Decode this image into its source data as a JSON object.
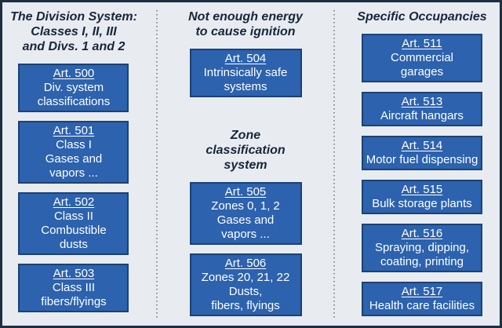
{
  "palette": {
    "panel_bg": "#e8ecf0",
    "frame_border": "#1c3044",
    "box_fill": "#2c62ae",
    "box_border": "#1b4275",
    "box_text": "#ffffff",
    "header_text": "#17263b",
    "divider_dot": "#8b929c"
  },
  "columns": [
    {
      "name": "division-system",
      "sections": [
        {
          "header_lines": [
            "The Division System:",
            "Classes I, II, III",
            "and Divs. 1 and 2"
          ],
          "boxes": [
            {
              "article": "Art. 500",
              "lines": [
                "Div. system",
                "classifications"
              ]
            },
            {
              "article": "Art. 501",
              "lines": [
                "Class I",
                "Gases and",
                "vapors ..."
              ]
            },
            {
              "article": "Art. 502",
              "lines": [
                "Class II",
                "Combustible",
                "dusts"
              ]
            },
            {
              "article": "Art. 503",
              "lines": [
                "Class III",
                "fibers/flyings"
              ]
            }
          ]
        }
      ]
    },
    {
      "name": "energy-and-zones",
      "sections": [
        {
          "header_lines": [
            "Not enough energy",
            "to cause ignition"
          ],
          "boxes": [
            {
              "article": "Art. 504",
              "lines": [
                "Intrinsically safe",
                "systems"
              ]
            }
          ]
        },
        {
          "header_lines": [
            "Zone",
            "classification",
            "system"
          ],
          "boxes": [
            {
              "article": "Art. 505",
              "lines": [
                "Zones 0, 1, 2",
                "Gases and",
                "vapors ..."
              ]
            },
            {
              "article": "Art. 506",
              "lines": [
                "Zones 20, 21, 22",
                "Dusts,",
                "fibers, flyings"
              ]
            }
          ]
        }
      ]
    },
    {
      "name": "specific-occupancies",
      "sections": [
        {
          "header_lines": [
            "Specific Occupancies"
          ],
          "boxes": [
            {
              "article": "Art. 511",
              "lines": [
                "Commercial",
                "garages"
              ]
            },
            {
              "article": "Art. 513",
              "lines": [
                "Aircraft hangars"
              ]
            },
            {
              "article": "Art. 514",
              "lines": [
                "Motor fuel dispensing"
              ]
            },
            {
              "article": "Art. 515",
              "lines": [
                "Bulk storage plants"
              ]
            },
            {
              "article": "Art. 516",
              "lines": [
                "Spraying, dipping,",
                "coating, printing"
              ]
            },
            {
              "article": "Art. 517",
              "lines": [
                "Health care facilities"
              ]
            }
          ]
        }
      ]
    }
  ]
}
